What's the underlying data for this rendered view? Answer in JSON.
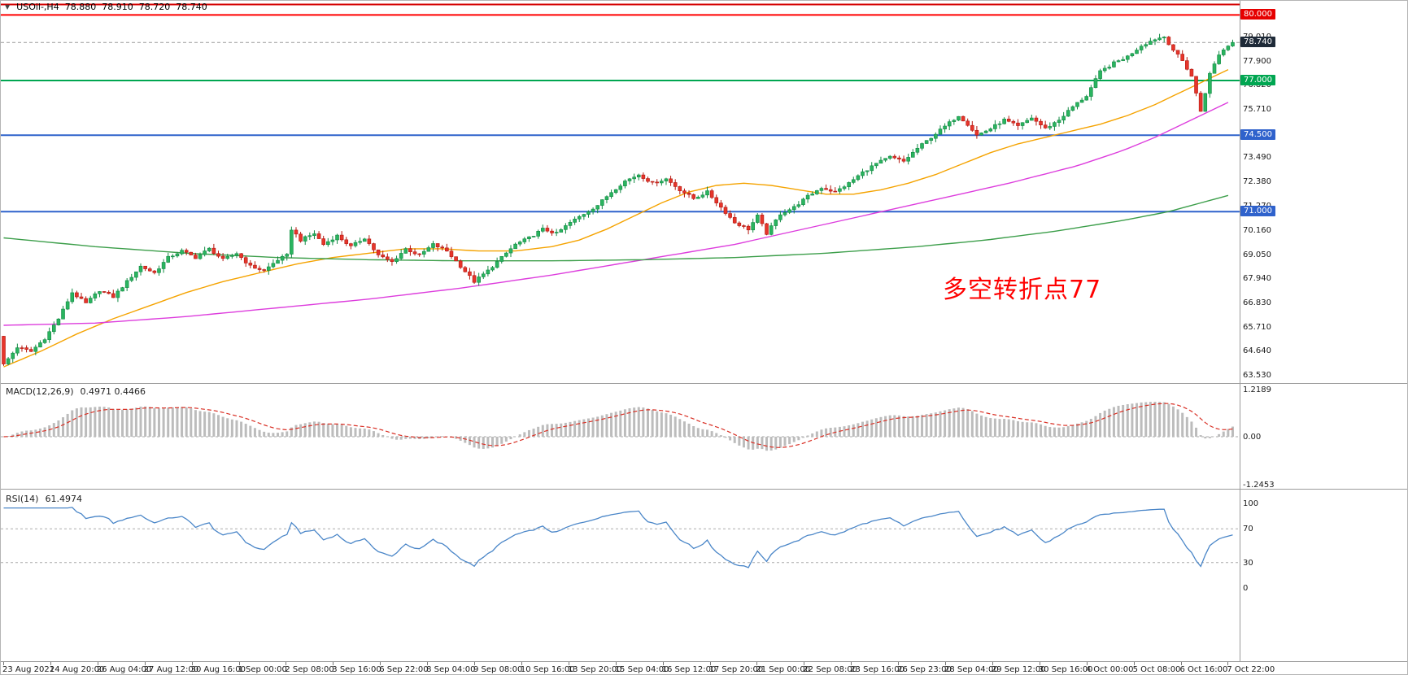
{
  "title": {
    "collapse_icon": "▼",
    "symbol": "USOil-,H4"
  },
  "annotation": {
    "text": "多空转折点77",
    "color": "#ff0000"
  },
  "chart_data": {
    "type": "candlestick",
    "symbol": "USOil-",
    "timeframe": "H4",
    "current": {
      "open": "78.880",
      "high": "78.910",
      "low": "78.720",
      "close": "78.740"
    },
    "num_candles": 270,
    "first_open": 65.3,
    "close_anchors": [
      [
        0,
        64.0
      ],
      [
        3,
        64.8
      ],
      [
        6,
        64.6
      ],
      [
        9,
        65.2
      ],
      [
        12,
        66.1
      ],
      [
        15,
        67.3
      ],
      [
        18,
        66.8
      ],
      [
        21,
        67.4
      ],
      [
        24,
        67.1
      ],
      [
        27,
        67.8
      ],
      [
        30,
        68.5
      ],
      [
        33,
        68.2
      ],
      [
        36,
        68.9
      ],
      [
        39,
        69.2
      ],
      [
        42,
        68.9
      ],
      [
        45,
        69.3
      ],
      [
        48,
        68.8
      ],
      [
        51,
        69.1
      ],
      [
        54,
        68.5
      ],
      [
        57,
        68.3
      ],
      [
        60,
        68.8
      ],
      [
        62,
        69.0
      ],
      [
        63,
        70.2
      ],
      [
        65,
        69.7
      ],
      [
        68,
        70.0
      ],
      [
        70,
        69.5
      ],
      [
        73,
        69.9
      ],
      [
        76,
        69.4
      ],
      [
        79,
        69.8
      ],
      [
        82,
        69.0
      ],
      [
        85,
        68.7
      ],
      [
        88,
        69.3
      ],
      [
        91,
        69.0
      ],
      [
        94,
        69.5
      ],
      [
        97,
        69.2
      ],
      [
        100,
        68.5
      ],
      [
        103,
        67.8
      ],
      [
        106,
        68.3
      ],
      [
        109,
        68.9
      ],
      [
        112,
        69.5
      ],
      [
        115,
        69.8
      ],
      [
        118,
        70.2
      ],
      [
        121,
        70.0
      ],
      [
        124,
        70.5
      ],
      [
        127,
        70.9
      ],
      [
        130,
        71.3
      ],
      [
        133,
        71.9
      ],
      [
        136,
        72.4
      ],
      [
        139,
        72.7
      ],
      [
        142,
        72.3
      ],
      [
        145,
        72.5
      ],
      [
        148,
        72.0
      ],
      [
        151,
        71.6
      ],
      [
        154,
        71.9
      ],
      [
        157,
        71.2
      ],
      [
        160,
        70.5
      ],
      [
        163,
        70.2
      ],
      [
        165,
        70.8
      ],
      [
        167,
        70.0
      ],
      [
        170,
        70.9
      ],
      [
        173,
        71.2
      ],
      [
        176,
        71.7
      ],
      [
        179,
        72.1
      ],
      [
        182,
        71.9
      ],
      [
        185,
        72.3
      ],
      [
        188,
        72.8
      ],
      [
        191,
        73.2
      ],
      [
        194,
        73.5
      ],
      [
        197,
        73.3
      ],
      [
        200,
        73.9
      ],
      [
        203,
        74.4
      ],
      [
        206,
        74.9
      ],
      [
        209,
        75.4
      ],
      [
        211,
        75.0
      ],
      [
        213,
        74.5
      ],
      [
        216,
        74.8
      ],
      [
        219,
        75.2
      ],
      [
        222,
        74.9
      ],
      [
        225,
        75.3
      ],
      [
        228,
        74.8
      ],
      [
        231,
        75.2
      ],
      [
        234,
        75.8
      ],
      [
        237,
        76.3
      ],
      [
        240,
        77.4
      ],
      [
        243,
        77.8
      ],
      [
        246,
        78.1
      ],
      [
        249,
        78.6
      ],
      [
        252,
        78.9
      ],
      [
        254,
        79.0
      ],
      [
        256,
        78.4
      ],
      [
        258,
        77.9
      ],
      [
        260,
        77.2
      ],
      [
        262,
        75.6
      ],
      [
        264,
        77.3
      ],
      [
        266,
        78.2
      ],
      [
        268,
        78.6
      ],
      [
        269,
        78.74
      ]
    ],
    "candle_colors": {
      "up": "#2ab45f",
      "up_stroke": "#128a43",
      "down": "#e6352b",
      "down_stroke": "#b3170f"
    },
    "price_axis": {
      "tick_labels": [
        "79.010",
        "77.900",
        "76.820",
        "75.710",
        "74.600",
        "73.490",
        "72.380",
        "71.270",
        "70.160",
        "69.050",
        "67.940",
        "66.830",
        "65.710",
        "64.640",
        "63.530"
      ],
      "badges": [
        {
          "label": "80.000",
          "value": 80.0,
          "bg": "#e60000"
        },
        {
          "label": "78.740",
          "value": 78.74,
          "bg": "#1e2a38"
        },
        {
          "label": "77.000",
          "value": 77.0,
          "bg": "#00a651"
        },
        {
          "label": "74.500",
          "value": 74.5,
          "bg": "#2f62cc"
        },
        {
          "label": "71.000",
          "value": 71.0,
          "bg": "#2f62cc"
        }
      ]
    },
    "level_lines": [
      {
        "value": 80.48,
        "color": "#d40000",
        "width": 2,
        "style": "solid"
      },
      {
        "value": 80.0,
        "color": "#ff0000",
        "width": 2,
        "style": "solid"
      },
      {
        "value": 78.74,
        "color": "#9a9a9a",
        "width": 1,
        "style": "dash"
      },
      {
        "value": 77.0,
        "color": "#00a651",
        "width": 2,
        "style": "solid"
      },
      {
        "value": 74.5,
        "color": "#2f62cc",
        "width": 2,
        "style": "solid"
      },
      {
        "value": 71.0,
        "color": "#2f62cc",
        "width": 2,
        "style": "solid"
      }
    ],
    "moving_averages": [
      {
        "name": "fast-orange",
        "color": "#f5a300",
        "anchors": [
          [
            0,
            63.9
          ],
          [
            8,
            64.6
          ],
          [
            16,
            65.4
          ],
          [
            24,
            66.1
          ],
          [
            32,
            66.7
          ],
          [
            40,
            67.3
          ],
          [
            48,
            67.8
          ],
          [
            56,
            68.2
          ],
          [
            64,
            68.6
          ],
          [
            72,
            68.9
          ],
          [
            80,
            69.1
          ],
          [
            88,
            69.3
          ],
          [
            96,
            69.3
          ],
          [
            104,
            69.2
          ],
          [
            112,
            69.2
          ],
          [
            120,
            69.4
          ],
          [
            126,
            69.7
          ],
          [
            132,
            70.2
          ],
          [
            138,
            70.8
          ],
          [
            144,
            71.4
          ],
          [
            150,
            71.9
          ],
          [
            156,
            72.2
          ],
          [
            162,
            72.3
          ],
          [
            168,
            72.2
          ],
          [
            174,
            72.0
          ],
          [
            180,
            71.8
          ],
          [
            186,
            71.8
          ],
          [
            192,
            72.0
          ],
          [
            198,
            72.3
          ],
          [
            204,
            72.7
          ],
          [
            210,
            73.2
          ],
          [
            216,
            73.7
          ],
          [
            222,
            74.1
          ],
          [
            228,
            74.4
          ],
          [
            234,
            74.7
          ],
          [
            240,
            75.0
          ],
          [
            246,
            75.4
          ],
          [
            252,
            75.9
          ],
          [
            257,
            76.4
          ],
          [
            262,
            76.9
          ],
          [
            266,
            77.3
          ],
          [
            269,
            77.6
          ]
        ]
      },
      {
        "name": "mid-magenta",
        "color": "#dd3ddd",
        "anchors": [
          [
            0,
            65.8
          ],
          [
            20,
            65.9
          ],
          [
            40,
            66.2
          ],
          [
            60,
            66.6
          ],
          [
            80,
            67.0
          ],
          [
            100,
            67.5
          ],
          [
            120,
            68.1
          ],
          [
            140,
            68.8
          ],
          [
            160,
            69.5
          ],
          [
            175,
            70.2
          ],
          [
            190,
            70.9
          ],
          [
            205,
            71.6
          ],
          [
            220,
            72.3
          ],
          [
            235,
            73.1
          ],
          [
            245,
            73.8
          ],
          [
            252,
            74.4
          ],
          [
            258,
            75.0
          ],
          [
            263,
            75.5
          ],
          [
            269,
            76.1
          ]
        ]
      },
      {
        "name": "slow-green",
        "color": "#3c9e4a",
        "anchors": [
          [
            0,
            69.8
          ],
          [
            20,
            69.4
          ],
          [
            40,
            69.1
          ],
          [
            60,
            68.9
          ],
          [
            80,
            68.8
          ],
          [
            100,
            68.75
          ],
          [
            120,
            68.75
          ],
          [
            140,
            68.8
          ],
          [
            160,
            68.9
          ],
          [
            180,
            69.1
          ],
          [
            200,
            69.4
          ],
          [
            215,
            69.7
          ],
          [
            230,
            70.1
          ],
          [
            245,
            70.6
          ],
          [
            255,
            71.0
          ],
          [
            262,
            71.4
          ],
          [
            269,
            71.8
          ]
        ]
      }
    ],
    "indicators": {
      "macd": {
        "title": "MACD(12,26,9)",
        "values": "0.4971 0.4466",
        "params": [
          12,
          26,
          9
        ],
        "axis_labels": [
          "1.2189",
          "0.00",
          "-1.2453"
        ],
        "axis_values": [
          1.2189,
          0,
          -1.2453
        ],
        "histogram_color": "#bcbcbc",
        "signal_color": "#d93025"
      },
      "rsi": {
        "title": "RSI(14)",
        "value": "61.4974",
        "period": 14,
        "axis_labels": [
          "100",
          "70",
          "30",
          "0"
        ],
        "axis_values": [
          100,
          70,
          30,
          0
        ],
        "levels": [
          70,
          30
        ],
        "line_color": "#4a86c8"
      }
    },
    "time_axis": {
      "labels": [
        "23 Aug 2021",
        "24 Aug 20:00",
        "26 Aug 04:00",
        "27 Aug 12:00",
        "30 Aug 16:00",
        "1 Sep 00:00",
        "2 Sep 08:00",
        "3 Sep 16:00",
        "6 Sep 22:00",
        "8 Sep 04:00",
        "9 Sep 08:00",
        "10 Sep 16:00",
        "13 Sep 20:00",
        "15 Sep 04:00",
        "16 Sep 12:00",
        "17 Sep 20:00",
        "21 Sep 00:00",
        "22 Sep 08:00",
        "23 Sep 16:00",
        "26 Sep 23:00",
        "28 Sep 04:00",
        "29 Sep 12:00",
        "30 Sep 16:00",
        "4 Oct 00:00",
        "5 Oct 08:00",
        "6 Oct 16:00",
        "7 Oct 22:00"
      ]
    }
  }
}
